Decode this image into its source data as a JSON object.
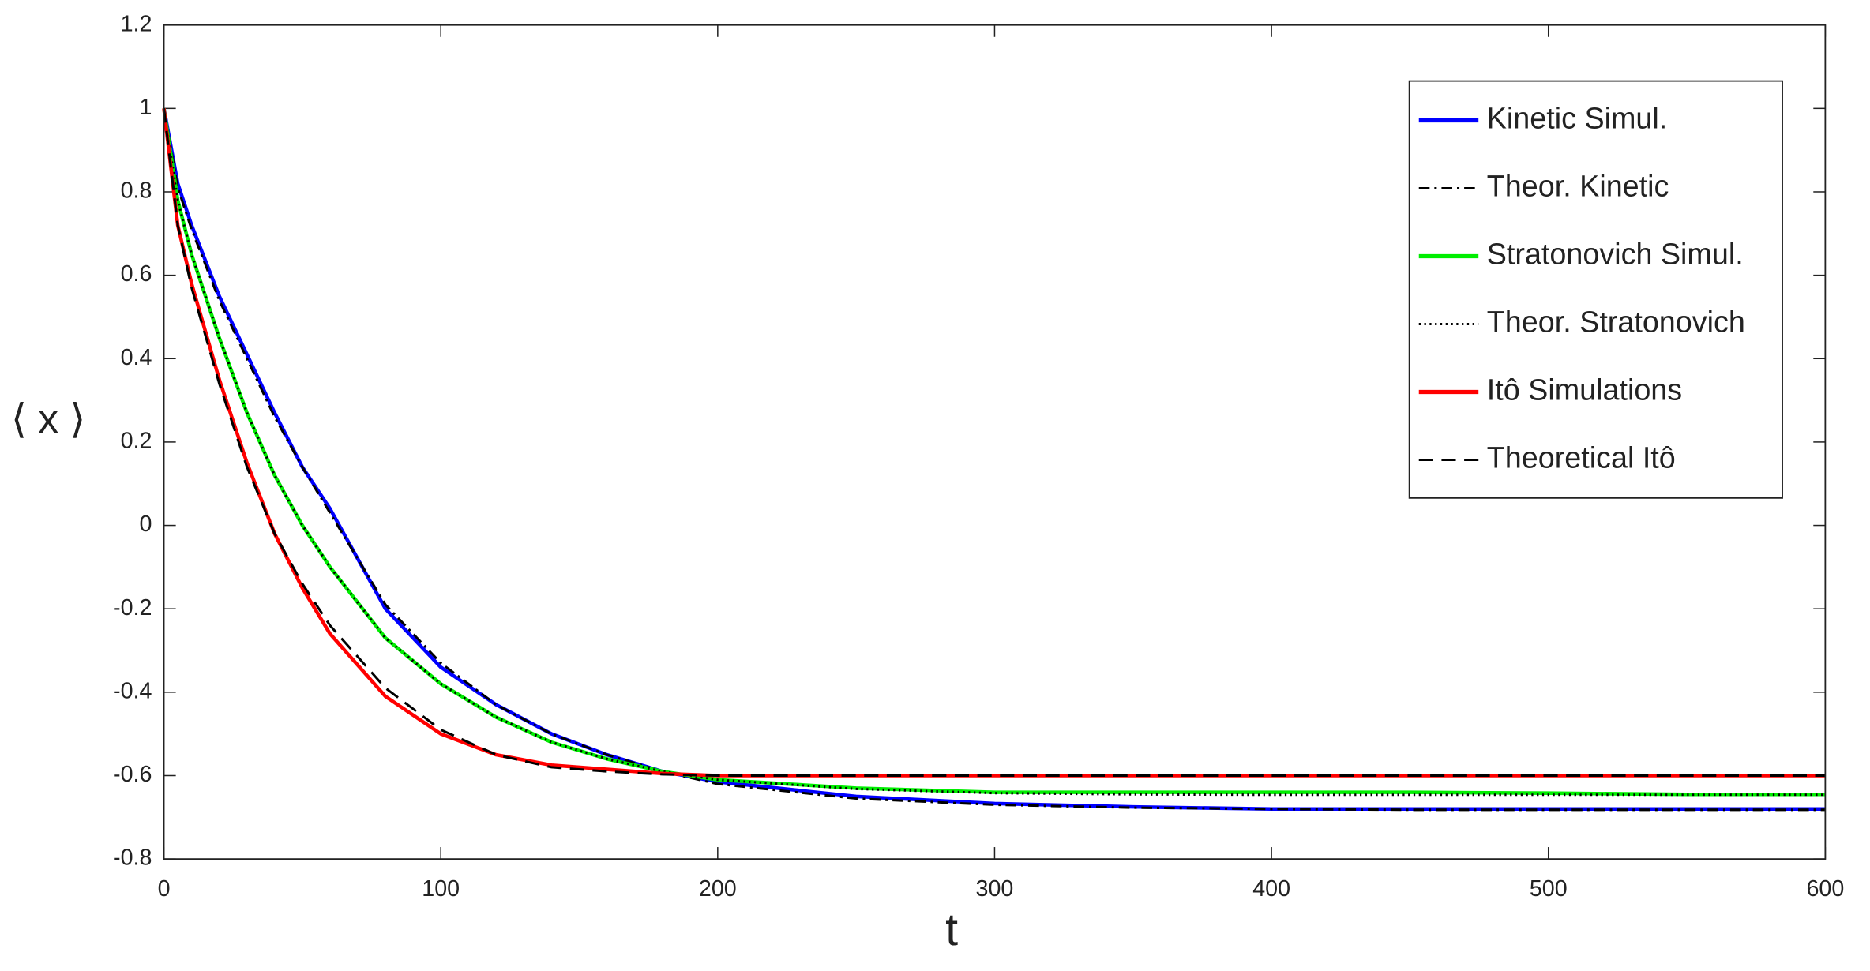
{
  "chart_data": {
    "type": "line",
    "x_label": "t",
    "y_label": "⟨ x ⟩",
    "x": [
      0,
      5,
      10,
      20,
      30,
      40,
      50,
      60,
      80,
      100,
      120,
      140,
      160,
      180,
      200,
      250,
      300,
      350,
      400,
      450,
      500,
      550,
      600
    ],
    "xlim": [
      0,
      600
    ],
    "xticks": [
      0,
      100,
      200,
      300,
      400,
      500,
      600
    ],
    "ylim": [
      -0.8,
      1.2
    ],
    "yticks": [
      -0.8,
      -0.6,
      -0.4,
      -0.2,
      0,
      0.2,
      0.4,
      0.6,
      0.8,
      1,
      1.2
    ],
    "grid": false,
    "legend": "upper right",
    "series": [
      {
        "name": "Kinetic Simul.",
        "color": "#0000ff",
        "dash": "solid",
        "values": [
          1,
          0.82,
          0.72,
          0.55,
          0.41,
          0.27,
          0.14,
          0.04,
          -0.2,
          -0.34,
          -0.43,
          -0.5,
          -0.55,
          -0.59,
          -0.615,
          -0.65,
          -0.667,
          -0.675,
          -0.68,
          -0.68,
          -0.68,
          -0.68,
          -0.68
        ]
      },
      {
        "name": "Theor. Kinetic",
        "color": "#000000",
        "dash": "dashdot",
        "values": [
          1,
          0.81,
          0.71,
          0.54,
          0.4,
          0.26,
          0.14,
          0.03,
          -0.19,
          -0.33,
          -0.43,
          -0.5,
          -0.55,
          -0.59,
          -0.62,
          -0.655,
          -0.67,
          -0.677,
          -0.68,
          -0.682,
          -0.682,
          -0.682,
          -0.682
        ]
      },
      {
        "name": "Stratonovich Simul.",
        "color": "#00ee00",
        "dash": "solid",
        "values": [
          1,
          0.78,
          0.65,
          0.45,
          0.27,
          0.12,
          0.0,
          -0.1,
          -0.27,
          -0.38,
          -0.46,
          -0.52,
          -0.56,
          -0.59,
          -0.61,
          -0.63,
          -0.64,
          -0.64,
          -0.64,
          -0.64,
          -0.642,
          -0.645,
          -0.645
        ]
      },
      {
        "name": "Theor. Stratonovich",
        "color": "#000000",
        "dash": "dotted",
        "values": [
          1,
          0.78,
          0.65,
          0.45,
          0.27,
          0.12,
          0.0,
          -0.1,
          -0.27,
          -0.38,
          -0.46,
          -0.52,
          -0.56,
          -0.59,
          -0.61,
          -0.632,
          -0.642,
          -0.645,
          -0.646,
          -0.646,
          -0.646,
          -0.646,
          -0.646
        ]
      },
      {
        "name": "Itô Simulations",
        "color": "#ff0000",
        "dash": "solid",
        "values": [
          1,
          0.72,
          0.58,
          0.35,
          0.15,
          -0.02,
          -0.15,
          -0.26,
          -0.41,
          -0.5,
          -0.55,
          -0.575,
          -0.585,
          -0.595,
          -0.6,
          -0.6,
          -0.6,
          -0.6,
          -0.6,
          -0.6,
          -0.6,
          -0.6,
          -0.6
        ]
      },
      {
        "name": "Theoretical Itô",
        "color": "#000000",
        "dash": "dashed",
        "values": [
          1,
          0.72,
          0.57,
          0.34,
          0.14,
          -0.02,
          -0.14,
          -0.24,
          -0.39,
          -0.49,
          -0.55,
          -0.58,
          -0.59,
          -0.597,
          -0.6,
          -0.6,
          -0.6,
          -0.6,
          -0.6,
          -0.6,
          -0.6,
          -0.6,
          -0.6
        ]
      }
    ]
  }
}
